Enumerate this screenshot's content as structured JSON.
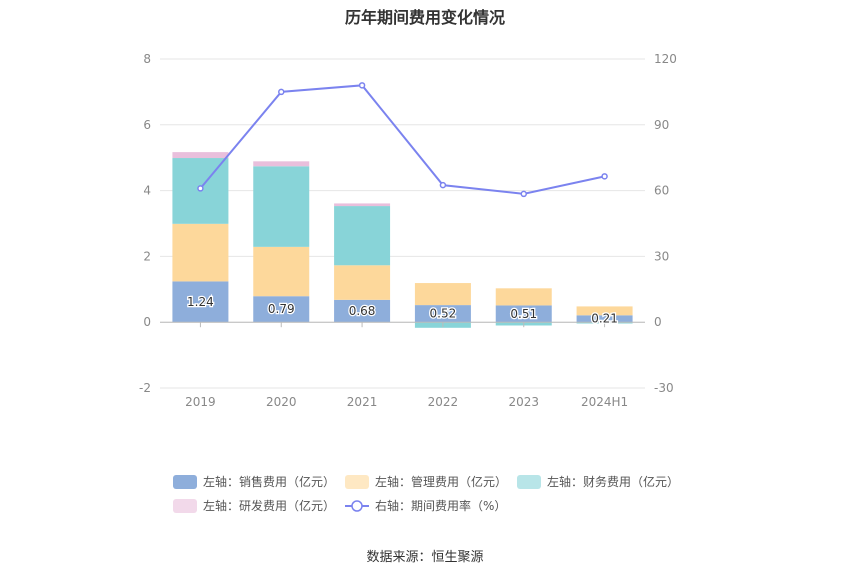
{
  "title": "历年期间费用变化情况",
  "source": "数据来源：恒生聚源",
  "chart_data": {
    "type": "bar",
    "stacked": true,
    "categories": [
      "2019",
      "2020",
      "2021",
      "2022",
      "2023",
      "2024H1"
    ],
    "left_axis": {
      "ylim": [
        -2,
        8
      ],
      "ticks": [
        "-2",
        "0",
        "2",
        "4",
        "6",
        "8"
      ]
    },
    "right_axis": {
      "ylim": [
        -30,
        120
      ],
      "ticks": [
        "-30",
        "0",
        "30",
        "60",
        "90",
        "120"
      ]
    },
    "series": [
      {
        "name": "左轴：销售费用（亿元）",
        "type": "bar",
        "color": "#8eaedb",
        "values": [
          1.24,
          0.79,
          0.68,
          0.52,
          0.51,
          0.21
        ],
        "labels": [
          "1.24",
          "0.79",
          "0.68",
          "0.52",
          "0.51",
          "0.21"
        ]
      },
      {
        "name": "左轴：管理费用（亿元）",
        "type": "bar",
        "color": "#fdd89b",
        "values": [
          1.75,
          1.5,
          1.05,
          0.67,
          0.52,
          0.27
        ]
      },
      {
        "name": "左轴：财务费用（亿元）",
        "type": "bar",
        "color": "#88d4d8",
        "values": [
          2.0,
          2.45,
          1.8,
          -0.17,
          -0.1,
          -0.04
        ]
      },
      {
        "name": "左轴：研发费用（亿元）",
        "type": "bar",
        "color": "#e9bfdc",
        "values": [
          0.18,
          0.15,
          0.08,
          0.0,
          0.0,
          0.0
        ]
      },
      {
        "name": "右轴：期间费用率（%）",
        "type": "line",
        "color": "#7b83ef",
        "values": [
          61,
          105,
          108,
          62.5,
          58.5,
          66.5
        ]
      }
    ],
    "grid": true,
    "legend_position": "bottom"
  }
}
